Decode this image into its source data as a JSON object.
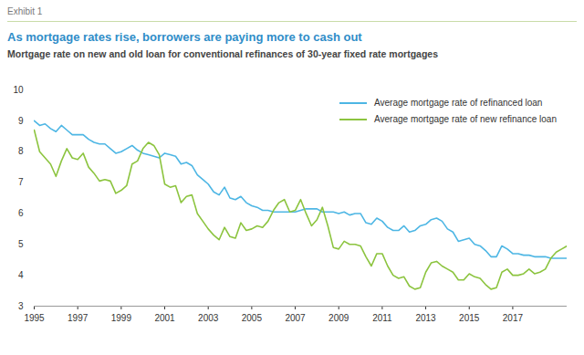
{
  "chart_data": {
    "type": "line",
    "supertitle": "Exhibit 1",
    "title": "As mortgage rates rise, borrowers are paying more to cash out",
    "subtitle": "Mortgage rate on new and old loan for conventional refinances of 30-year fixed rate mortgages",
    "x": [
      1995,
      1995.25,
      1995.5,
      1995.75,
      1996,
      1996.25,
      1996.5,
      1996.75,
      1997,
      1997.25,
      1997.5,
      1997.75,
      1998,
      1998.25,
      1998.5,
      1998.75,
      1999,
      1999.25,
      1999.5,
      1999.75,
      2000,
      2000.25,
      2000.5,
      2000.75,
      2001,
      2001.25,
      2001.5,
      2001.75,
      2002,
      2002.25,
      2002.5,
      2002.75,
      2003,
      2003.25,
      2003.5,
      2003.75,
      2004,
      2004.25,
      2004.5,
      2004.75,
      2005,
      2005.25,
      2005.5,
      2005.75,
      2006,
      2006.25,
      2006.5,
      2006.75,
      2007,
      2007.25,
      2007.5,
      2007.75,
      2008,
      2008.25,
      2008.5,
      2008.75,
      2009,
      2009.25,
      2009.5,
      2009.75,
      2010,
      2010.25,
      2010.5,
      2010.75,
      2011,
      2011.25,
      2011.5,
      2011.75,
      2012,
      2012.25,
      2012.5,
      2012.75,
      2013,
      2013.25,
      2013.5,
      2013.75,
      2014,
      2014.25,
      2014.5,
      2014.75,
      2015,
      2015.25,
      2015.5,
      2015.75,
      2016,
      2016.25,
      2016.5,
      2016.75,
      2017,
      2017.25,
      2017.5,
      2017.75,
      2018,
      2018.25,
      2018.5,
      2018.75,
      2019,
      2019.25,
      2019.5
    ],
    "series": [
      {
        "name": "Average mortgage rate of refinanced loan",
        "color": "#4db6e4",
        "values": [
          9.0,
          8.85,
          8.9,
          8.75,
          8.65,
          8.85,
          8.7,
          8.55,
          8.55,
          8.55,
          8.4,
          8.3,
          8.25,
          8.25,
          8.1,
          7.95,
          8.0,
          8.1,
          8.2,
          8.05,
          7.95,
          7.9,
          7.85,
          7.8,
          7.95,
          7.9,
          7.85,
          7.6,
          7.65,
          7.55,
          7.25,
          7.1,
          6.95,
          6.7,
          6.6,
          6.85,
          6.5,
          6.45,
          6.55,
          6.35,
          6.25,
          6.2,
          6.1,
          6.1,
          6.05,
          6.05,
          6.05,
          6.05,
          6.05,
          6.1,
          6.15,
          6.15,
          6.15,
          6.05,
          6.05,
          6.05,
          6.0,
          6.05,
          5.95,
          6.0,
          6.0,
          5.7,
          5.65,
          5.85,
          5.75,
          5.55,
          5.45,
          5.45,
          5.6,
          5.4,
          5.45,
          5.6,
          5.65,
          5.8,
          5.85,
          5.75,
          5.5,
          5.4,
          5.1,
          5.15,
          5.2,
          5.0,
          4.95,
          4.8,
          4.6,
          4.6,
          4.95,
          4.85,
          4.7,
          4.7,
          4.65,
          4.65,
          4.6,
          4.6,
          4.6,
          4.55,
          4.55,
          4.55,
          4.55
        ]
      },
      {
        "name": "Average mortgage rate of new refinance loan",
        "color": "#8cc43f",
        "values": [
          8.7,
          8.0,
          7.8,
          7.6,
          7.2,
          7.7,
          8.1,
          7.8,
          7.75,
          7.95,
          7.5,
          7.3,
          7.05,
          7.1,
          7.05,
          6.65,
          6.75,
          6.9,
          7.6,
          7.7,
          8.1,
          8.3,
          8.2,
          7.9,
          6.95,
          6.85,
          6.9,
          6.35,
          6.55,
          6.6,
          6.0,
          5.75,
          5.5,
          5.3,
          5.15,
          5.55,
          5.25,
          5.2,
          5.7,
          5.45,
          5.5,
          5.6,
          5.55,
          5.75,
          6.1,
          6.35,
          6.45,
          6.05,
          6.1,
          6.45,
          6.0,
          5.6,
          5.8,
          6.2,
          5.6,
          4.9,
          4.85,
          5.1,
          5.0,
          5.0,
          4.95,
          4.6,
          4.3,
          4.7,
          4.7,
          4.3,
          4.0,
          3.9,
          3.95,
          3.65,
          3.55,
          3.6,
          4.1,
          4.4,
          4.45,
          4.3,
          4.2,
          4.1,
          3.85,
          3.85,
          4.05,
          3.95,
          3.9,
          3.7,
          3.55,
          3.6,
          4.1,
          4.2,
          4.0,
          4.0,
          4.05,
          4.2,
          4.05,
          4.1,
          4.2,
          4.55,
          4.75,
          4.85,
          4.95
        ]
      }
    ],
    "xlim": [
      1995,
      2019.5
    ],
    "xticks": [
      1995,
      1997,
      1999,
      2001,
      2003,
      2005,
      2007,
      2009,
      2011,
      2013,
      2015,
      2017
    ],
    "ylim": [
      3,
      10
    ],
    "yticks": [
      3,
      4,
      5,
      6,
      7,
      8,
      9,
      10
    ],
    "grid": false,
    "legend": "top-right"
  }
}
